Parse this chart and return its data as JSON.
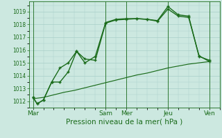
{
  "bg_color": "#cce8e0",
  "grid_color": "#a8cfc8",
  "line_color": "#1a6b1a",
  "xlabel": "Pression niveau de la mer( hPa )",
  "ylim": [
    1011.5,
    1019.8
  ],
  "yticks": [
    1012,
    1013,
    1014,
    1015,
    1016,
    1017,
    1018,
    1019
  ],
  "x_day_labels": [
    "Mar",
    "Sam",
    "Mer",
    "Jeu",
    "Ven"
  ],
  "x_day_positions": [
    0,
    35,
    45,
    65,
    85
  ],
  "xlim": [
    -2,
    90
  ],
  "series1_x": [
    0,
    2,
    5,
    9,
    13,
    17,
    21,
    25,
    30,
    35,
    40,
    45,
    50,
    55,
    60,
    65,
    70,
    75,
    80,
    85
  ],
  "series1_y": [
    1012.3,
    1011.8,
    1012.1,
    1013.5,
    1014.6,
    1015.0,
    1015.9,
    1015.0,
    1015.5,
    1018.15,
    1018.4,
    1018.45,
    1018.45,
    1018.4,
    1018.3,
    1019.4,
    1018.75,
    1018.65,
    1015.5,
    1015.2
  ],
  "series2_x": [
    0,
    2,
    5,
    9,
    13,
    17,
    21,
    25,
    30,
    35,
    40,
    45,
    50,
    55,
    60,
    65,
    70,
    75,
    80,
    85
  ],
  "series2_y": [
    1012.3,
    1011.8,
    1012.1,
    1013.5,
    1013.5,
    1014.3,
    1015.9,
    1015.3,
    1015.2,
    1018.1,
    1018.35,
    1018.4,
    1018.45,
    1018.4,
    1018.25,
    1019.2,
    1018.65,
    1018.55,
    1015.55,
    1015.1
  ],
  "series3_x": [
    0,
    5,
    10,
    15,
    20,
    25,
    30,
    35,
    40,
    45,
    50,
    55,
    60,
    65,
    70,
    75,
    80,
    85
  ],
  "series3_y": [
    1012.2,
    1012.3,
    1012.5,
    1012.7,
    1012.85,
    1013.05,
    1013.25,
    1013.45,
    1013.65,
    1013.85,
    1014.05,
    1014.2,
    1014.4,
    1014.6,
    1014.75,
    1014.9,
    1015.0,
    1015.1
  ],
  "marker": "+",
  "markersize": 3.5,
  "linewidth": 1.0,
  "vline_x": [
    0,
    35,
    45,
    65,
    85
  ],
  "figsize": [
    3.2,
    2.0
  ],
  "dpi": 100
}
